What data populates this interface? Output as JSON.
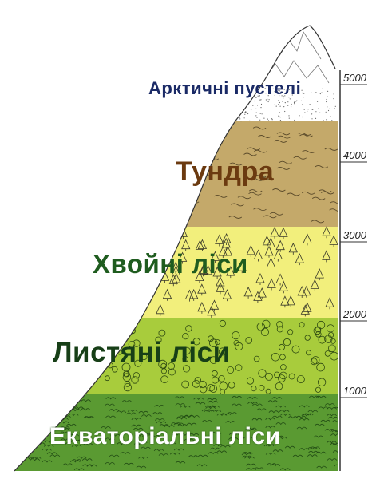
{
  "zones": [
    {
      "key": "equatorial",
      "label": "Екваторіальні ліси",
      "color": "#5a9a32",
      "from": 0,
      "to": 900
    },
    {
      "key": "deciduous",
      "label": "Листяні ліси",
      "color": "#a8cc3c",
      "from": 900,
      "to": 1750
    },
    {
      "key": "coniferous",
      "label": "Хвойні ліси",
      "color": "#f2ef7c",
      "from": 1750,
      "to": 2800
    },
    {
      "key": "tundra",
      "label": "Тундра",
      "color": "#c4a96a",
      "from": 2800,
      "to": 4000
    },
    {
      "key": "desert",
      "label": "Арктичні пустелі",
      "color": "#ffffff",
      "from": 4000,
      "to": 5600
    }
  ],
  "axis": {
    "ticks": [
      "1000",
      "2000",
      "3000",
      "4000",
      "5000"
    ]
  }
}
